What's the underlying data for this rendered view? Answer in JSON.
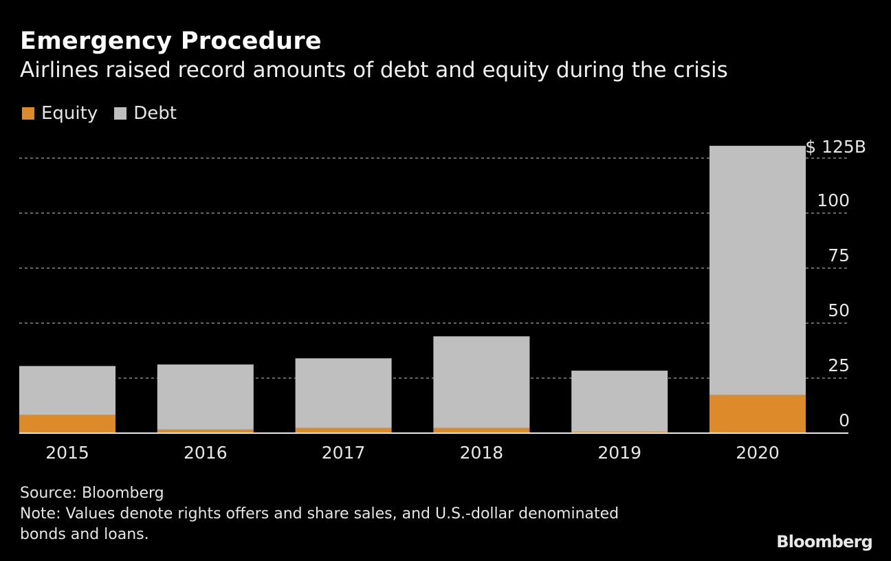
{
  "header": {
    "title": "Emergency Procedure",
    "subtitle": "Airlines raised record amounts of debt and equity during the crisis"
  },
  "colors": {
    "equity": "#dd8a2a",
    "debt": "#bfbfbf",
    "background": "#000000",
    "grid": "#8a8a8a"
  },
  "chart_data": {
    "type": "bar",
    "stacked": true,
    "title": "Emergency Procedure",
    "subtitle": "Airlines raised record amounts of debt and equity during the crisis",
    "xlabel": "",
    "ylabel": "",
    "categories": [
      "2015",
      "2016",
      "2017",
      "2018",
      "2019",
      "2020"
    ],
    "series": [
      {
        "name": "Equity",
        "color": "#dd8a2a",
        "values": [
          8.2,
          1.6,
          2.3,
          2.3,
          0.6,
          17.3
        ]
      },
      {
        "name": "Debt",
        "color": "#bfbfbf",
        "values": [
          22.3,
          29.6,
          31.7,
          41.7,
          27.8,
          113.3
        ]
      }
    ],
    "ylim": [
      0,
      125
    ],
    "yticks": [
      0,
      25,
      50,
      75,
      100,
      125
    ],
    "ytick_labels": [
      "0",
      "25",
      "50",
      "75",
      "100",
      "$ 125B"
    ],
    "y_axis_side": "right",
    "grid": true,
    "legend_position": "top-left"
  },
  "legend": [
    {
      "label": "Equity"
    },
    {
      "label": "Debt"
    }
  ],
  "footer": {
    "source": "Source: Bloomberg",
    "note_line1": "Note: Values denote rights offers and share sales, and U.S.-dollar denominated",
    "note_line2": "bonds and loans."
  },
  "brand": "Bloomberg"
}
